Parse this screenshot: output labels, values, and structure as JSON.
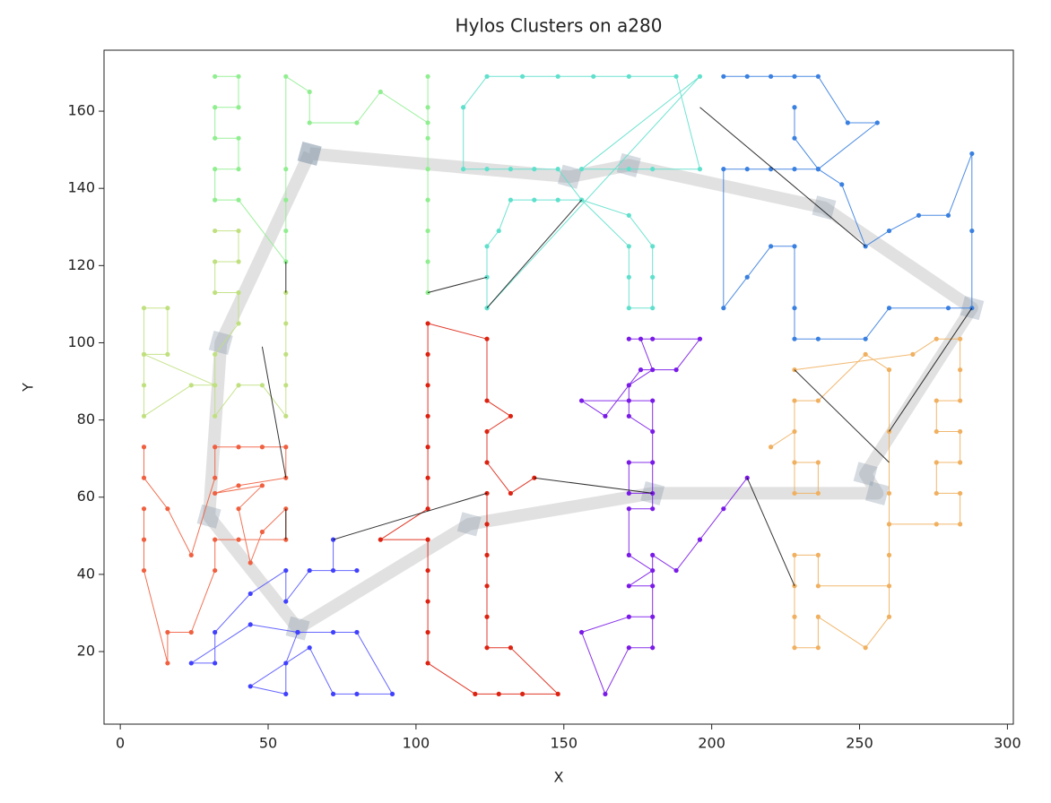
{
  "chart_data": {
    "type": "line",
    "title": "Hylos Clusters on a280",
    "x_label": "X",
    "y_label": "Y",
    "xlim": [
      -5.5,
      302
    ],
    "ylim": [
      1.2,
      175.8
    ],
    "xticks": [
      0,
      50,
      100,
      150,
      200,
      250,
      300
    ],
    "yticks": [
      20,
      40,
      60,
      80,
      100,
      120,
      140,
      160
    ],
    "series": [
      {
        "color": "#aaaaaa",
        "alpha": 0.35,
        "linewidth": 14,
        "marker": "square",
        "x": [
          64,
          34,
          30,
          60,
          118,
          180,
          256,
          252,
          288,
          238,
          172,
          152,
          64
        ],
        "y": [
          149,
          100,
          55,
          26,
          53,
          61,
          61,
          66,
          109,
          135,
          146,
          143,
          149
        ]
      },
      {
        "color": "#90ee90",
        "alpha": 0.9,
        "linewidth": 1,
        "marker": "circle",
        "x": [
          32,
          40,
          40,
          32,
          32,
          40,
          40,
          32,
          32,
          40,
          56,
          56,
          56,
          56,
          56,
          64,
          64,
          80,
          88,
          104,
          104,
          104,
          104,
          104,
          104,
          104,
          104,
          104
        ],
        "y": [
          169,
          169,
          161,
          161,
          153,
          153,
          145,
          145,
          137,
          137,
          121,
          129,
          137,
          145,
          169,
          165,
          157,
          157,
          165,
          157,
          169,
          161,
          153,
          145,
          137,
          129,
          121,
          113
        ]
      },
      {
        "color": "#c0e080",
        "alpha": 0.9,
        "linewidth": 1,
        "marker": "circle",
        "x": [
          32,
          40,
          40,
          32,
          32,
          40,
          40,
          32,
          32,
          24,
          8,
          8,
          8,
          16,
          16,
          8,
          8,
          32,
          32,
          40,
          48,
          56,
          56,
          56,
          56,
          56
        ],
        "y": [
          129,
          129,
          121,
          121,
          113,
          113,
          105,
          97,
          89,
          89,
          81,
          89,
          97,
          97,
          109,
          109,
          97,
          89,
          81,
          89,
          89,
          81,
          89,
          97,
          105,
          113
        ]
      },
      {
        "color": "#f06040",
        "alpha": 0.9,
        "linewidth": 1,
        "marker": "circle",
        "x": [
          8,
          8,
          16,
          24,
          32,
          32,
          40,
          48,
          56,
          56,
          40,
          32,
          48,
          40,
          44,
          48,
          56,
          56,
          40,
          32,
          32,
          24,
          16,
          16,
          8,
          8,
          8
        ],
        "y": [
          73,
          65,
          57,
          45,
          65,
          73,
          73,
          73,
          73,
          65,
          63,
          61,
          63,
          57,
          43,
          51,
          57,
          49,
          49,
          49,
          41,
          25,
          25,
          17,
          41,
          49,
          57
        ]
      },
      {
        "color": "#4040ff",
        "alpha": 0.8,
        "linewidth": 1,
        "marker": "circle",
        "x": [
          72,
          72,
          80,
          64,
          56,
          56,
          44,
          32,
          32,
          24,
          44,
          60,
          56,
          56,
          44,
          64,
          72,
          80,
          92,
          80,
          72,
          60
        ],
        "y": [
          49,
          41,
          41,
          41,
          33,
          41,
          35,
          25,
          17,
          17,
          27,
          25,
          17,
          9,
          11,
          21,
          9,
          9,
          9,
          25,
          25,
          25
        ]
      },
      {
        "color": "#dd2211",
        "alpha": 0.9,
        "linewidth": 1,
        "marker": "circle",
        "x": [
          140,
          132,
          124,
          124,
          132,
          124,
          124,
          104,
          104,
          104,
          104,
          104,
          104,
          104,
          88,
          104,
          104,
          104,
          104,
          104,
          120,
          128,
          136,
          148,
          132,
          124,
          124,
          124,
          124,
          124,
          124
        ],
        "y": [
          65,
          61,
          69,
          77,
          81,
          85,
          101,
          105,
          97,
          89,
          81,
          73,
          65,
          57,
          49,
          49,
          41,
          33,
          25,
          17,
          9,
          9,
          9,
          9,
          21,
          21,
          29,
          37,
          45,
          53,
          61
        ]
      },
      {
        "color": "#7a1ae8",
        "alpha": 0.9,
        "linewidth": 1,
        "marker": "circle",
        "x": [
          180,
          172,
          172,
          180,
          180,
          172,
          172,
          180,
          176,
          172,
          180,
          196,
          188,
          176,
          164,
          156,
          172,
          180,
          180,
          172,
          172,
          180,
          172,
          180,
          180,
          172,
          156,
          164,
          172,
          180,
          180,
          188,
          196,
          204,
          212
        ],
        "y": [
          61,
          61,
          69,
          69,
          77,
          81,
          89,
          93,
          101,
          101,
          101,
          101,
          93,
          93,
          81,
          85,
          85,
          85,
          57,
          57,
          45,
          41,
          37,
          37,
          29,
          29,
          25,
          9,
          21,
          21,
          45,
          41,
          49,
          57,
          65
        ]
      },
      {
        "color": "#5fe0cc",
        "alpha": 0.9,
        "linewidth": 1,
        "marker": "circle",
        "x": [
          124,
          124,
          124,
          128,
          132,
          140,
          148,
          156,
          172,
          172,
          172,
          180,
          180,
          180,
          172,
          156,
          148,
          140,
          132,
          124,
          116,
          116,
          124,
          136,
          148,
          160,
          172,
          188,
          196,
          180,
          172,
          156,
          196,
          124
        ],
        "y": [
          109,
          117,
          125,
          129,
          137,
          137,
          137,
          137,
          125,
          117,
          109,
          109,
          117,
          125,
          133,
          137,
          145,
          145,
          145,
          145,
          145,
          161,
          169,
          169,
          169,
          169,
          169,
          169,
          145,
          145,
          145,
          145,
          169,
          109
        ]
      },
      {
        "color": "#3a80e0",
        "alpha": 0.9,
        "linewidth": 1,
        "marker": "circle",
        "x": [
          204,
          212,
          220,
          228,
          236,
          246,
          256,
          236,
          228,
          220,
          212,
          204,
          204,
          212,
          220,
          228,
          228,
          228,
          236,
          252,
          260,
          280,
          288,
          288,
          288,
          280,
          270,
          260,
          252,
          244,
          236,
          228,
          228
        ],
        "y": [
          169,
          169,
          169,
          169,
          169,
          157,
          157,
          145,
          145,
          145,
          145,
          145,
          109,
          117,
          125,
          125,
          109,
          101,
          101,
          101,
          109,
          109,
          109,
          129,
          149,
          133,
          133,
          129,
          125,
          141,
          145,
          153,
          161
        ]
      },
      {
        "color": "#f0b060",
        "alpha": 0.9,
        "linewidth": 1,
        "marker": "circle",
        "x": [
          228,
          268,
          276,
          284,
          284,
          284,
          276,
          276,
          284,
          284,
          276,
          276,
          284,
          284,
          276,
          260,
          260,
          252,
          236,
          236,
          228,
          228,
          228,
          228,
          236,
          236,
          260,
          260,
          260,
          260,
          260,
          252,
          236,
          228,
          228,
          236,
          236,
          228,
          228,
          220
        ],
        "y": [
          93,
          97,
          101,
          101,
          93,
          85,
          85,
          77,
          77,
          69,
          69,
          61,
          61,
          53,
          53,
          53,
          29,
          21,
          29,
          21,
          21,
          29,
          37,
          45,
          45,
          37,
          37,
          45,
          61,
          77,
          93,
          97,
          85,
          85,
          61,
          61,
          69,
          69,
          77,
          73
        ]
      },
      {
        "color": "#000000",
        "alpha": 0.8,
        "linewidth": 1,
        "marker": "none",
        "x": [
          104,
          124,
          null,
          124,
          156,
          null,
          196,
          252,
          null,
          288,
          260,
          null,
          228,
          260,
          null,
          212,
          228,
          null,
          140,
          180,
          null,
          124,
          72,
          null,
          48,
          56,
          null,
          56,
          56,
          null,
          56,
          56
        ],
        "y": [
          113,
          117,
          null,
          109,
          137,
          null,
          161,
          125,
          null,
          109,
          77,
          null,
          93,
          69,
          null,
          65,
          37,
          null,
          65,
          61,
          null,
          61,
          49,
          null,
          99,
          65,
          null,
          121,
          113,
          null,
          57,
          49
        ]
      }
    ]
  }
}
